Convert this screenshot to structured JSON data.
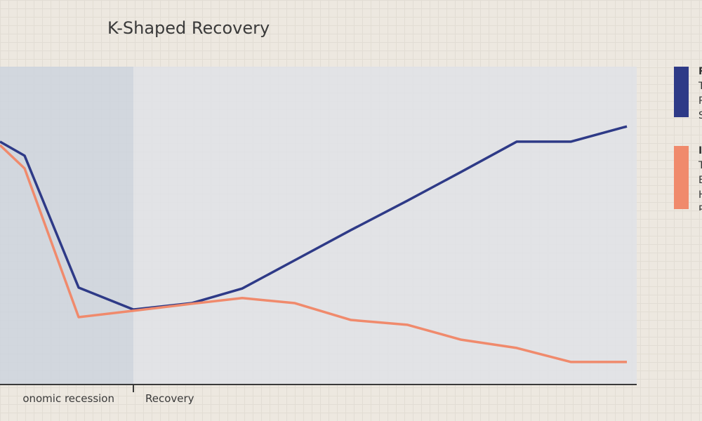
{
  "chart_data": {
    "type": "line",
    "title": "K-Shaped Recovery",
    "x": [
      0,
      1,
      2,
      3,
      4,
      5,
      6,
      7,
      8,
      9,
      10,
      11,
      12
    ],
    "series": [
      {
        "color": "#2e3a87",
        "values": [
          76.4,
          72.0,
          30.5,
          23.6,
          25.6,
          30.2,
          39.1,
          48.6,
          57.8,
          66.9,
          76.4,
          76.4,
          81.2
        ]
      },
      {
        "color": "#f08a6c",
        "values": [
          75.3,
          68.0,
          21.2,
          23.2,
          25.4,
          27.2,
          25.6,
          20.3,
          18.8,
          14.1,
          11.5,
          7.1,
          7.1
        ]
      }
    ],
    "ylim": [
      0,
      100
    ],
    "phases": [
      {
        "label": "onomic recession",
        "from": 0,
        "to": 3,
        "color": "#cdd3dd"
      },
      {
        "label": "Recovery",
        "from": 3,
        "to": 12,
        "color": "#dfe2e6"
      }
    ],
    "grid": false,
    "legend_placement": "right",
    "legend": [
      {
        "color": "#2e3a87",
        "title": "R",
        "lines": [
          "T",
          "R",
          "S"
        ]
      },
      {
        "color": "#f08a6c",
        "title": "I",
        "lines": [
          "T",
          "E",
          "H",
          "R"
        ]
      }
    ]
  }
}
